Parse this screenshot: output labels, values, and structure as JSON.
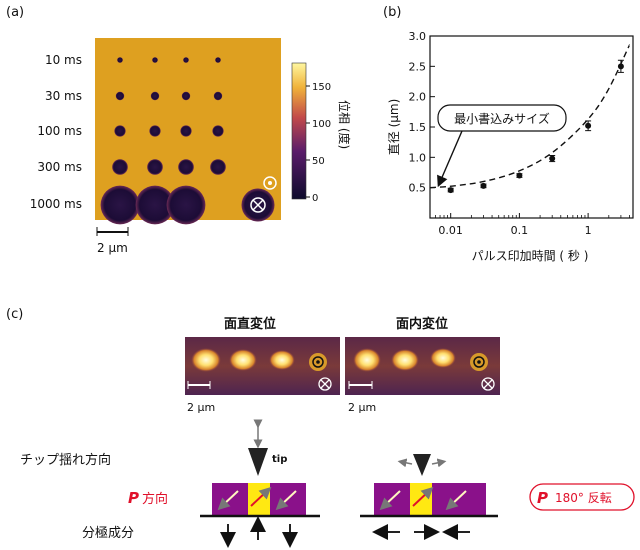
{
  "panel_a": {
    "label": "(a)",
    "row_labels": [
      "10 ms",
      "30 ms",
      "100 ms",
      "300 ms",
      "1000 ms"
    ],
    "dot_radii_um": [
      0.18,
      0.27,
      0.36,
      0.5,
      1.25
    ],
    "scale_bar": "2 μm",
    "colorbar": {
      "ticks": [
        "150",
        "100",
        "50",
        "0"
      ],
      "label": "位相 (度)"
    },
    "colors": {
      "background": "#e0a422",
      "dot": "#1e0e3c",
      "bar_low": "#0d0b2c",
      "bar_mid": "#b3356a",
      "bar_high": "#fff7a0"
    }
  },
  "panel_b": {
    "label": "(b)",
    "annotation": "最小書込みサイズ"
  },
  "chart_data": {
    "type": "scatter",
    "title": "",
    "xlabel": "パルス印加時間 ( 秒 )",
    "ylabel": "直径 (μm)",
    "xscale": "log",
    "xlim": [
      0.005,
      4.5
    ],
    "ylim": [
      0.0,
      3.0
    ],
    "xticks": [
      0.01,
      0.1,
      1
    ],
    "xtick_labels": [
      "0.01",
      "0.1",
      "1"
    ],
    "yticks": [
      0.5,
      1.0,
      1.5,
      2.0,
      2.5,
      3.0
    ],
    "ytick_labels": [
      "0.5",
      "1.0",
      "1.5",
      "2.0",
      "2.5",
      "3.0"
    ],
    "series": [
      {
        "x": [
          0.01,
          0.03,
          0.1,
          0.3,
          1.0,
          3.0
        ],
        "y": [
          0.46,
          0.53,
          0.7,
          0.98,
          1.52,
          2.5
        ],
        "yerr": [
          0.03,
          0.03,
          0.03,
          0.05,
          0.08,
          0.1
        ]
      }
    ],
    "fit_curve": {
      "x": [
        0.005,
        0.01,
        0.03,
        0.1,
        0.3,
        1.0,
        2.0,
        4.0
      ],
      "y": [
        0.5,
        0.52,
        0.59,
        0.76,
        1.05,
        1.6,
        2.1,
        2.85
      ]
    },
    "grid": false
  },
  "panel_c": {
    "label": "(c)",
    "title_left": "面直変位",
    "title_right": "面内変位",
    "scale_bar": "2 μm",
    "row_labels": [
      "チップ揺れ方向",
      "方向",
      "分極成分"
    ],
    "p_symbol": "P",
    "tip_label": "tip",
    "rotate_label": "180°  反転",
    "colors": {
      "purple": "#8a118a",
      "yellow": "#ffe812",
      "red": "#e0102a",
      "img_bg": "#6a2e3e"
    }
  }
}
